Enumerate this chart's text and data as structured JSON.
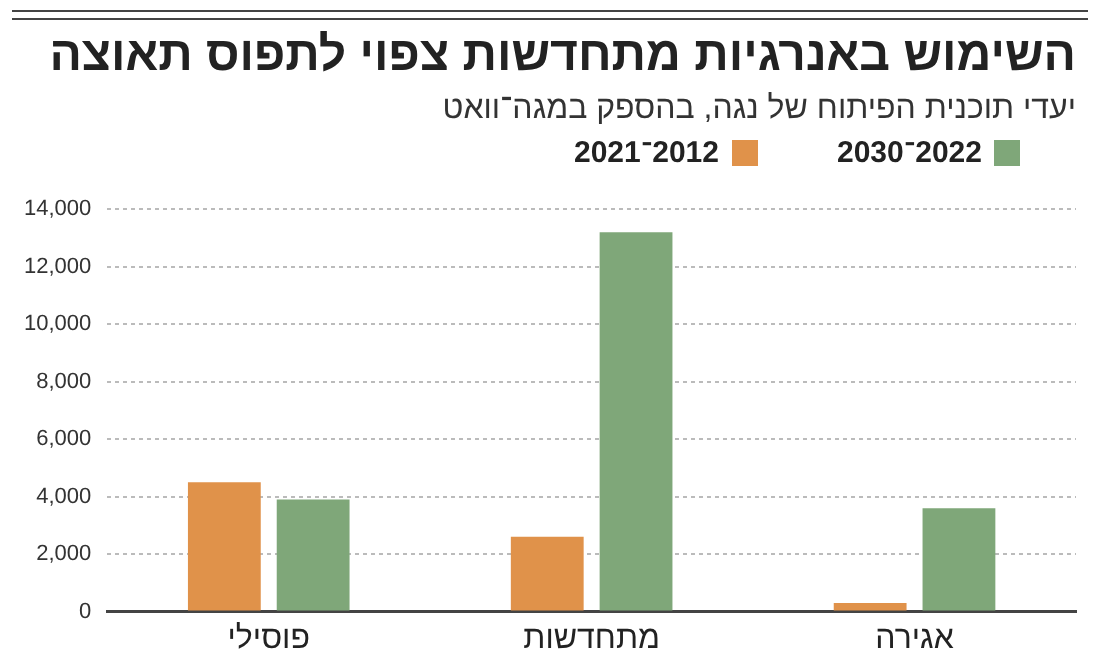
{
  "chart_data": {
    "type": "bar",
    "title": "השימוש באנרגיות מתחדשות צפוי לתפוס תאוצה",
    "subtitle": "יעדי תוכנית הפיתוח של נגה, בהספק במגה־וואט",
    "categories": [
      "פוסילי",
      "מתחדשות",
      "אגירה"
    ],
    "series": [
      {
        "name": "2012־2021",
        "color": "#e0924a",
        "values": [
          4500,
          2600,
          300
        ]
      },
      {
        "name": "2022־2030",
        "color": "#7fa779",
        "values": [
          3900,
          13200,
          3600
        ]
      }
    ],
    "ylim": [
      0,
      14000
    ],
    "yticks": [
      {
        "value": 0,
        "label": "0"
      },
      {
        "value": 2000,
        "label": "2,000"
      },
      {
        "value": 4000,
        "label": "4,000"
      },
      {
        "value": 6000,
        "label": "6,000"
      },
      {
        "value": 8000,
        "label": "8,000"
      },
      {
        "value": 10000,
        "label": "10,000"
      },
      {
        "value": 12000,
        "label": "12,000"
      },
      {
        "value": 14000,
        "label": "14,000"
      }
    ],
    "grid": "y",
    "legend": "top"
  }
}
